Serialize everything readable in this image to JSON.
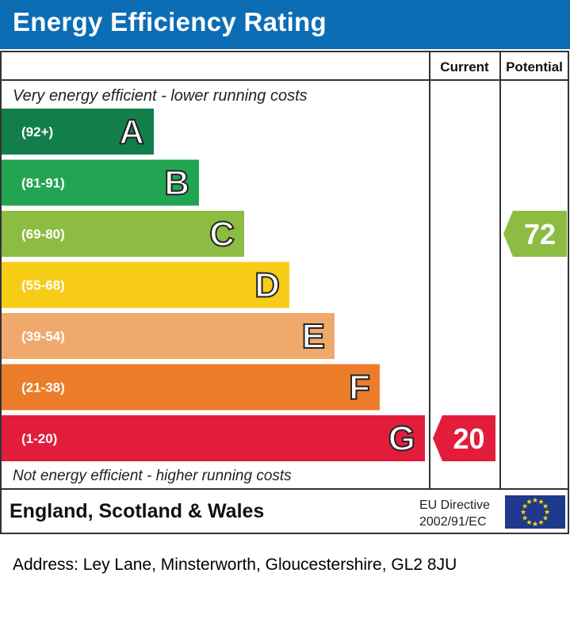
{
  "header": {
    "title": "Energy Efficiency Rating"
  },
  "columns": {
    "current": "Current",
    "potential": "Potential"
  },
  "top_caption": "Very energy efficient - lower running costs",
  "bottom_caption": "Not energy efficient - higher running costs",
  "region": "England, Scotland & Wales",
  "directive": {
    "line1": "EU Directive",
    "line2": "2002/91/EC"
  },
  "address": "Address: Ley Lane, Minsterworth, Gloucestershire, GL2 8JU",
  "chart_data": {
    "type": "bar",
    "categories": [
      "A",
      "B",
      "C",
      "D",
      "E",
      "F",
      "G"
    ],
    "ranges": [
      "(92+)",
      "(81-91)",
      "(69-80)",
      "(55-68)",
      "(39-54)",
      "(21-38)",
      "(1-20)"
    ],
    "colors": [
      "#127f4a",
      "#22a553",
      "#8dbc42",
      "#f7cc17",
      "#f0a96c",
      "#eb7d2a",
      "#e21d3c"
    ],
    "current": {
      "value": 20,
      "band": "G",
      "color": "#e21d3c"
    },
    "potential": {
      "value": 72,
      "band": "C",
      "color": "#8dbc42"
    }
  }
}
